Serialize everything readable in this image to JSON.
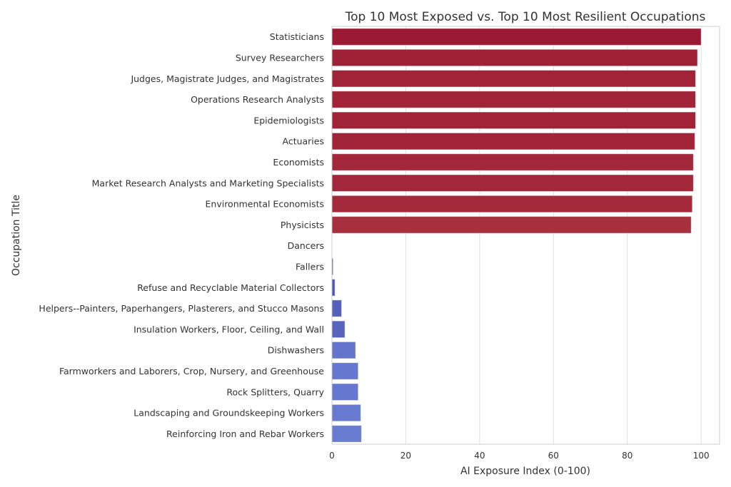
{
  "chart_data": {
    "type": "bar",
    "orientation": "horizontal",
    "title": "Top 10 Most Exposed vs. Top 10 Most Resilient Occupations",
    "xlabel": "AI Exposure Index (0-100)",
    "ylabel": "Occupation Title",
    "xlim": [
      0,
      105
    ],
    "xticks": [
      0,
      20,
      40,
      60,
      80,
      100
    ],
    "grid": true,
    "categories": [
      "Statisticians",
      "Survey Researchers",
      "Judges, Magistrate Judges, and Magistrates",
      "Operations Research Analysts",
      "Epidemiologists",
      "Actuaries",
      "Economists",
      "Market Research Analysts and Marketing Specialists",
      "Environmental Economists",
      "Physicists",
      "Dancers",
      "Fallers",
      "Refuse and Recyclable Material Collectors",
      "Helpers--Painters, Paperhangers, Plasterers, and Stucco Masons",
      "Insulation Workers, Floor, Ceiling, and Wall",
      "Dishwashers",
      "Farmworkers and Laborers, Crop, Nursery, and Greenhouse",
      "Rock Splitters, Quarry",
      "Landscaping and Groundskeeping Workers",
      "Reinforcing Iron and Rebar Workers"
    ],
    "values": [
      100,
      99.0,
      98.5,
      98.5,
      98.5,
      98.3,
      97.9,
      97.9,
      97.6,
      97.3,
      0,
      0.3,
      0.8,
      2.6,
      3.5,
      6.4,
      7.1,
      7.1,
      7.8,
      8.0
    ],
    "colors": [
      "#9c1933",
      "#9f2136",
      "#a02337",
      "#a02337",
      "#a02337",
      "#a12438",
      "#a2273a",
      "#a2273a",
      "#a4293b",
      "#a6303d",
      "#3b4cc0",
      "#4354b9",
      "#4b58bb",
      "#5560bd",
      "#5764be",
      "#6473cc",
      "#6577ce",
      "#6577ce",
      "#677ad0",
      "#687cd2"
    ]
  }
}
